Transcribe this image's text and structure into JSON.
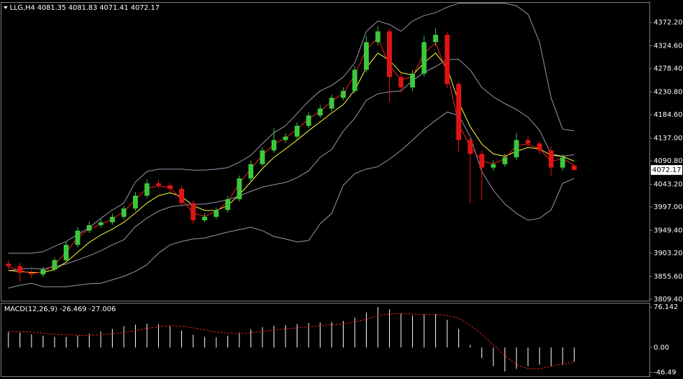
{
  "chart_data": [
    {
      "type": "candlestick",
      "title": "LLG,H4  4081.35 4081.83 4071.41 4072.17",
      "open": [
        3882,
        3877,
        3863,
        3860,
        3870,
        3889,
        3920,
        3949,
        3960,
        3966,
        3977,
        3994,
        4020,
        4045,
        4041,
        4034,
        4005,
        3970,
        3977,
        3991,
        4013,
        4055,
        4084,
        4112,
        4133,
        4140,
        4162,
        4183,
        4197,
        4219,
        4233,
        4276,
        4332,
        4354,
        4261,
        4240,
        4268,
        4332,
        4347,
        4247,
        4133,
        4105,
        4077,
        4084,
        4098,
        4133,
        4126,
        4112,
        4077,
        4081.35
      ],
      "high": [
        3890,
        3884,
        3870,
        3875,
        3894,
        3926,
        3956,
        3968,
        3973,
        3984,
        3999,
        4027,
        4053,
        4052,
        4046,
        4040,
        4010,
        3984,
        3996,
        4019,
        4061,
        4091,
        4119,
        4157,
        4147,
        4169,
        4190,
        4204,
        4226,
        4240,
        4283,
        4345,
        4365,
        4360,
        4268,
        4276,
        4345,
        4360,
        4352,
        4252,
        4140,
        4112,
        4092,
        4105,
        4147,
        4140,
        4131,
        4120,
        4104,
        4081.83
      ],
      "low": [
        3870,
        3845,
        3852,
        3855,
        3866,
        3884,
        3915,
        3944,
        3955,
        3961,
        3972,
        3989,
        4015,
        4034,
        4027,
        3998,
        3962,
        3966,
        3972,
        3986,
        4008,
        4050,
        4079,
        4107,
        4127,
        4135,
        4157,
        4178,
        4191,
        4214,
        4228,
        4270,
        4325,
        4210,
        4228,
        4233,
        4262,
        4325,
        4238,
        4110,
        4005,
        4010,
        4070,
        4079,
        4093,
        4120,
        4105,
        4060,
        4071,
        4071.41
      ],
      "close": [
        3877,
        3863,
        3860,
        3870,
        3889,
        3920,
        3949,
        3960,
        3966,
        3977,
        3994,
        4020,
        4045,
        4041,
        4034,
        4005,
        3970,
        3977,
        3991,
        4013,
        4055,
        4084,
        4112,
        4133,
        4140,
        4162,
        4183,
        4197,
        4219,
        4233,
        4276,
        4332,
        4354,
        4261,
        4240,
        4268,
        4332,
        4347,
        4247,
        4133,
        4105,
        4077,
        4084,
        4098,
        4133,
        4126,
        4112,
        4077,
        4098,
        4072.17
      ],
      "up_color": "#3cc83c",
      "down_color": "#e01414",
      "series": [
        {
          "color": "#9a9ab4",
          "values": [
            3903,
            3903,
            3903,
            3906,
            3917,
            3927,
            3941,
            3955,
            3974,
            3991,
            4005,
            4048,
            4069,
            4074,
            4074,
            4074,
            4072,
            4072,
            4074,
            4077,
            4088,
            4102,
            4126,
            4148,
            4162,
            4187,
            4212,
            4233,
            4244,
            4261,
            4290,
            4354,
            4375,
            4368,
            4354,
            4375,
            4386,
            4392,
            4403,
            4411,
            4411,
            4411,
            4411,
            4411,
            4406,
            4389,
            4332,
            4219,
            4155,
            4152
          ]
        },
        {
          "color": "#9a9ab4",
          "values": [
            3867.5,
            3870.5,
            3872.5,
            3870.5,
            3876,
            3881,
            3889.5,
            3898,
            3908,
            3920,
            3930.5,
            3957,
            3974.5,
            3988.5,
            3997,
            4000.5,
            4002,
            4003,
            4007,
            4011.5,
            4019.5,
            4029,
            4037.5,
            4042.5,
            4047,
            4056.5,
            4070.5,
            4098,
            4114,
            4151,
            4177.5,
            4214,
            4227,
            4231,
            4233,
            4254,
            4270.5,
            4282.5,
            4296.5,
            4297,
            4275.5,
            4240,
            4221,
            4207,
            4195,
            4179.5,
            4153,
            4105,
            4100,
            4103.5
          ]
        },
        {
          "color": "#9a9ab4",
          "values": [
            3832,
            3838,
            3842,
            3835,
            3835,
            3835,
            3838,
            3841,
            3842,
            3849,
            3856,
            3866,
            3880,
            3903,
            3920,
            3927,
            3932,
            3934,
            3940,
            3946,
            3951,
            3956,
            3949,
            3937,
            3932,
            3926,
            3929,
            3963,
            3984,
            4041,
            4065,
            4074,
            4079,
            4094,
            4112,
            4133,
            4155,
            4173,
            4190,
            4183,
            4140,
            4069,
            4031,
            4003,
            3984,
            3970,
            3974,
            3991,
            4045,
            4055
          ]
        },
        {
          "color": "#ffff40",
          "values": [
            3868,
            3866,
            3864,
            3864,
            3870,
            3885,
            3905,
            3925,
            3940,
            3952,
            3966,
            3985,
            4005,
            4020,
            4026,
            4018,
            4000,
            3990,
            3990,
            4000,
            4022,
            4048,
            4075,
            4098,
            4115,
            4133,
            4152,
            4170,
            4188,
            4205,
            4235,
            4280,
            4310,
            4295,
            4270,
            4265,
            4290,
            4310,
            4280,
            4210,
            4160,
            4125,
            4105,
            4100,
            4110,
            4118,
            4115,
            4102,
            4100,
            4090
          ]
        },
        {
          "color": "#ff2020",
          "values": [
            3875,
            3868,
            3862,
            3865,
            3880,
            3905,
            3935,
            3952,
            3962,
            3972,
            3988,
            4012,
            4035,
            4040,
            4036,
            4012,
            3985,
            3978,
            3988,
            4008,
            4045,
            4075,
            4102,
            4125,
            4137,
            4155,
            4176,
            4192,
            4212,
            4228,
            4265,
            4318,
            4340,
            4285,
            4255,
            4262,
            4310,
            4330,
            4270,
            4165,
            4120,
            4090,
            4085,
            4095,
            4122,
            4125,
            4115,
            4090,
            4095,
            4082
          ]
        }
      ],
      "price_label": "4072.17",
      "ylim": [
        3806.6,
        4412
      ],
      "yticks": [
        {
          "value": 4372.2,
          "label": "4372.20"
        },
        {
          "value": 4324.6,
          "label": "4324.60"
        },
        {
          "value": 4278.4,
          "label": "4278.40"
        },
        {
          "value": 4230.8,
          "label": "4230.80"
        },
        {
          "value": 4184.6,
          "label": "4184.60"
        },
        {
          "value": 4137,
          "label": "4137.00"
        },
        {
          "value": 4090.8,
          "label": "4090.80"
        },
        {
          "value": 4043.2,
          "label": "4043.20"
        },
        {
          "value": 3997,
          "label": "3997.00"
        },
        {
          "value": 3949.4,
          "label": "3949.40"
        },
        {
          "value": 3903.2,
          "label": "3903.20"
        },
        {
          "value": 3855.6,
          "label": "3855.60"
        },
        {
          "value": 3809.4,
          "label": "3809.40"
        }
      ]
    },
    {
      "type": "macd",
      "title": "MACD(12,26,9) -26.469 -27.006",
      "values": [
        29,
        28,
        25,
        22,
        20,
        20,
        22,
        26,
        30,
        35,
        40,
        43,
        45,
        44,
        40,
        32,
        24,
        20,
        19,
        22,
        28,
        34,
        38,
        41,
        42,
        44,
        46,
        47,
        48,
        50,
        56,
        66,
        76,
        72,
        64,
        60,
        62,
        63,
        52,
        35,
        5,
        -20,
        -35,
        -45,
        -40,
        -35,
        -32,
        -36,
        -33,
        -26.469
      ],
      "color": "#ffffff",
      "signal": {
        "color": "#e02020",
        "values": [
          30,
          30,
          29,
          27,
          25,
          24,
          23,
          23,
          24,
          26,
          28,
          32,
          36,
          39,
          41,
          40,
          37,
          33,
          29,
          27,
          26,
          28,
          30,
          33,
          35,
          37,
          39,
          41,
          43,
          45,
          48,
          53,
          60,
          63,
          64,
          63,
          62,
          62,
          60,
          55,
          42,
          25,
          5,
          -15,
          -32,
          -40,
          -40,
          -35,
          -31,
          -27.006
        ]
      },
      "ylim": [
        -53.8,
        82.7
      ],
      "yticks": [
        76.142,
        {
          "value": 0,
          "label": "0.00"
        },
        -46.49
      ]
    }
  ]
}
